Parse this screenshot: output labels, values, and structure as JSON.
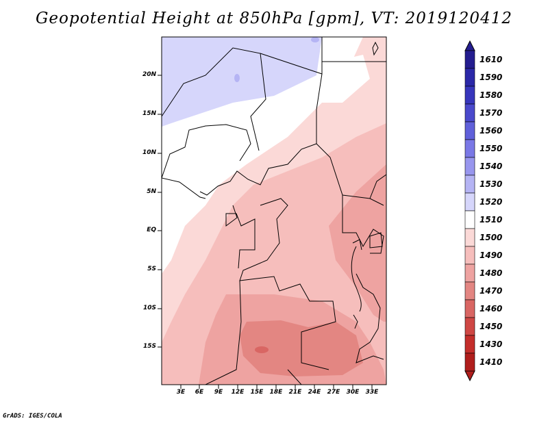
{
  "title": "Geopotential Height at 850hPa [gpm], VT: 2019120412",
  "footer": "GrADS: IGES/COLA",
  "map": {
    "lat_ticks": [
      "20N",
      "15N",
      "10N",
      "5N",
      "EQ",
      "5S",
      "10S",
      "15S"
    ],
    "lon_ticks": [
      "3E",
      "6E",
      "9E",
      "12E",
      "15E",
      "18E",
      "21E",
      "24E",
      "27E",
      "30E",
      "33E"
    ]
  },
  "colorbar": {
    "levels": [
      "1610",
      "1590",
      "1580",
      "1570",
      "1560",
      "1550",
      "1540",
      "1530",
      "1520",
      "1510",
      "1500",
      "1490",
      "1480",
      "1470",
      "1460",
      "1450",
      "1430",
      "1410"
    ],
    "colors": [
      "#241d8f",
      "#2b28a8",
      "#3736bc",
      "#4a49cc",
      "#6060da",
      "#7a78e6",
      "#9896ee",
      "#b5b4f4",
      "#d6d6fb",
      "#ffffff",
      "#fbd9d7",
      "#f6bebc",
      "#eea3a1",
      "#e38682",
      "#d96663",
      "#cf4744",
      "#c42e2b",
      "#b01e1c"
    ]
  }
}
